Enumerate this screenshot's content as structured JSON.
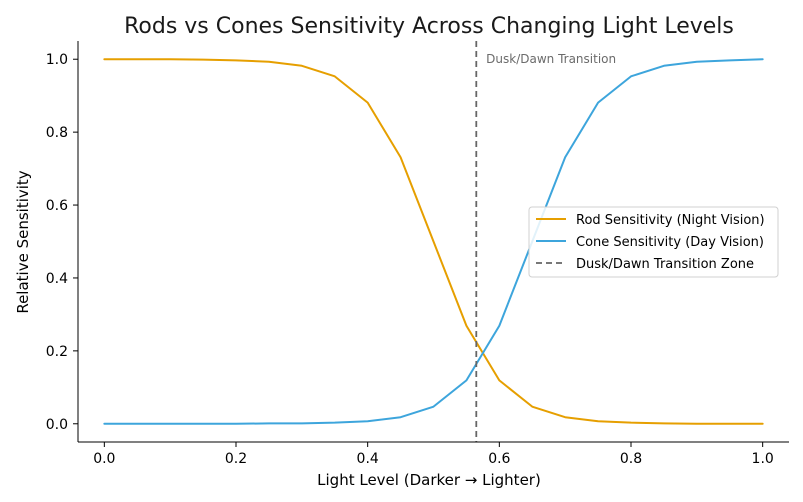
{
  "chart_data": {
    "type": "line",
    "title": "Rods vs Cones Sensitivity Across Changing Light Levels",
    "xlabel": "Light Level (Darker → Lighter)",
    "ylabel": "Relative Sensitivity",
    "xlim": [
      -0.04,
      1.04
    ],
    "ylim": [
      -0.05,
      1.05
    ],
    "xticks": [
      0.0,
      0.2,
      0.4,
      0.6,
      0.8,
      1.0
    ],
    "xtick_labels": [
      "0.0",
      "0.2",
      "0.4",
      "0.6",
      "0.8",
      "1.0"
    ],
    "yticks": [
      0.0,
      0.2,
      0.4,
      0.6,
      0.8,
      1.0
    ],
    "ytick_labels": [
      "0.0",
      "0.2",
      "0.4",
      "0.6",
      "0.8",
      "1.0"
    ],
    "grid": false,
    "legend_position": "center-right",
    "series": [
      {
        "name": "Rod Sensitivity (Night Vision)",
        "color": "#E69F00",
        "style": "solid",
        "x": [
          0.0,
          0.05,
          0.1,
          0.15,
          0.2,
          0.25,
          0.3,
          0.35,
          0.4,
          0.45,
          0.5,
          0.55,
          0.6,
          0.65,
          0.7,
          0.75,
          0.8,
          0.85,
          0.9,
          0.95,
          1.0
        ],
        "values": [
          1.0,
          1.0,
          1.0,
          0.999,
          0.997,
          0.993,
          0.982,
          0.953,
          0.881,
          0.731,
          0.5,
          0.269,
          0.119,
          0.047,
          0.018,
          0.007,
          0.003,
          0.001,
          0.0,
          0.0,
          0.0
        ]
      },
      {
        "name": "Cone Sensitivity (Day Vision)",
        "color": "#3DA5DC",
        "style": "solid",
        "x": [
          0.0,
          0.05,
          0.1,
          0.15,
          0.2,
          0.25,
          0.3,
          0.35,
          0.4,
          0.45,
          0.5,
          0.55,
          0.6,
          0.65,
          0.7,
          0.75,
          0.8,
          0.85,
          0.9,
          0.95,
          1.0
        ],
        "values": [
          0.0,
          0.0,
          0.0,
          0.0,
          0.0,
          0.001,
          0.001,
          0.003,
          0.007,
          0.018,
          0.047,
          0.119,
          0.269,
          0.5,
          0.731,
          0.881,
          0.953,
          0.982,
          0.993,
          0.997,
          1.0
        ]
      },
      {
        "name": "Dusk/Dawn Transition Zone",
        "color": "#666666",
        "style": "dashed",
        "x_value": 0.565
      }
    ],
    "annotations": [
      {
        "text": "Dusk/Dawn Transition",
        "x": 0.58,
        "y": 1.0
      }
    ]
  }
}
